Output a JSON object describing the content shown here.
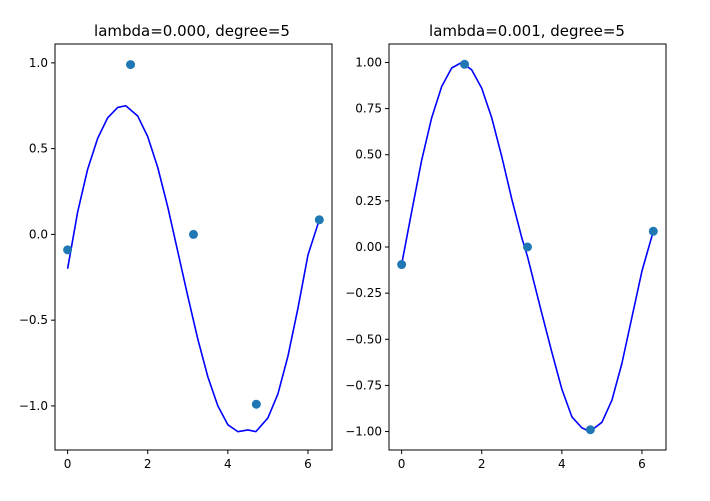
{
  "colors": {
    "curve": "#0000ff",
    "points": "#1f77b4",
    "axes": "#000000",
    "background": "#ffffff"
  },
  "chart_data": [
    {
      "type": "scatter",
      "title": "lambda=0.000, degree=5",
      "xlabel": "",
      "ylabel": "",
      "xlim": [
        -0.315,
        6.6
      ],
      "ylim": [
        -1.257,
        1.11
      ],
      "grid": false,
      "xticks": [
        0,
        2,
        4,
        6
      ],
      "xtick_labels": [
        "0",
        "2",
        "4",
        "6"
      ],
      "yticks": [
        -1.0,
        -0.5,
        0.0,
        0.5,
        1.0
      ],
      "ytick_labels": [
        "−1.0",
        "−0.5",
        "0.0",
        "0.5",
        "1.0"
      ],
      "points": {
        "x": [
          0.0,
          1.571,
          3.142,
          4.712,
          6.283
        ],
        "y": [
          -0.09,
          0.99,
          0.0,
          -0.99,
          0.085
        ]
      },
      "curve": {
        "x": [
          0.0,
          0.25,
          0.5,
          0.75,
          1.0,
          1.25,
          1.45,
          1.75,
          2.0,
          2.25,
          2.5,
          2.75,
          3.0,
          3.25,
          3.5,
          3.75,
          4.0,
          4.25,
          4.5,
          4.7,
          5.0,
          5.25,
          5.5,
          5.75,
          6.0,
          6.283
        ],
        "y": [
          -0.2,
          0.13,
          0.38,
          0.56,
          0.68,
          0.74,
          0.75,
          0.69,
          0.57,
          0.39,
          0.16,
          -0.1,
          -0.36,
          -0.61,
          -0.83,
          -1.0,
          -1.11,
          -1.15,
          -1.14,
          -1.15,
          -1.07,
          -0.93,
          -0.71,
          -0.43,
          -0.12,
          0.085
        ]
      }
    },
    {
      "type": "scatter",
      "title": "lambda=0.001, degree=5",
      "xlabel": "",
      "ylabel": "",
      "xlim": [
        -0.315,
        6.6
      ],
      "ylim": [
        -1.1,
        1.1
      ],
      "grid": false,
      "xticks": [
        0,
        2,
        4,
        6
      ],
      "xtick_labels": [
        "0",
        "2",
        "4",
        "6"
      ],
      "yticks": [
        -1.0,
        -0.75,
        -0.5,
        -0.25,
        0.0,
        0.25,
        0.5,
        0.75,
        1.0
      ],
      "ytick_labels": [
        "−1.00",
        "−0.75",
        "−0.50",
        "−0.25",
        "0.00",
        "0.25",
        "0.50",
        "0.75",
        "1.00"
      ],
      "points": {
        "x": [
          0.0,
          1.571,
          3.142,
          4.712,
          6.283
        ],
        "y": [
          -0.095,
          0.99,
          0.0,
          -0.99,
          0.085
        ]
      },
      "curve": {
        "x": [
          0.0,
          0.25,
          0.5,
          0.75,
          1.0,
          1.25,
          1.5,
          1.75,
          2.0,
          2.25,
          2.5,
          2.75,
          3.0,
          3.14,
          3.5,
          3.75,
          4.0,
          4.25,
          4.5,
          4.7,
          5.0,
          5.25,
          5.5,
          5.75,
          6.0,
          6.283
        ],
        "y": [
          -0.095,
          0.19,
          0.47,
          0.7,
          0.87,
          0.97,
          1.0,
          0.96,
          0.86,
          0.7,
          0.49,
          0.26,
          0.05,
          -0.05,
          -0.36,
          -0.57,
          -0.77,
          -0.92,
          -0.98,
          -1.0,
          -0.95,
          -0.83,
          -0.63,
          -0.38,
          -0.13,
          0.085
        ]
      }
    }
  ]
}
